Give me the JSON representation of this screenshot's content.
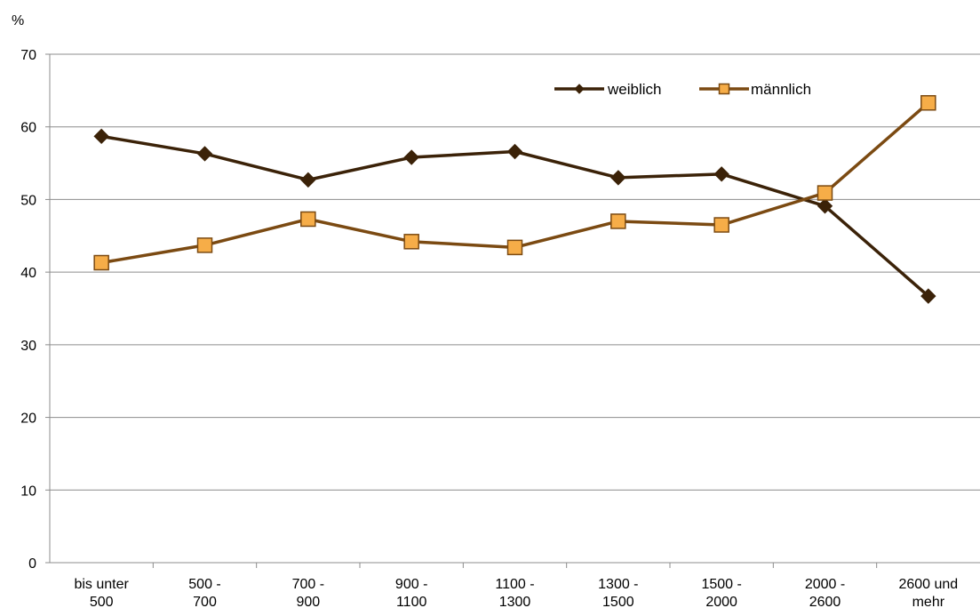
{
  "chart_data": {
    "type": "line",
    "ylabel": "%",
    "ylim": [
      0,
      70
    ],
    "yticks": [
      0,
      10,
      20,
      30,
      40,
      50,
      60,
      70
    ],
    "grid": true,
    "legend_position": "top-right",
    "categories": [
      [
        "bis unter",
        "500"
      ],
      [
        "500 -",
        "700"
      ],
      [
        "700 -",
        "900"
      ],
      [
        "900 -",
        "1100"
      ],
      [
        "1100 -",
        "1300"
      ],
      [
        "1300 -",
        "1500"
      ],
      [
        "1500 -",
        "2000"
      ],
      [
        "2000 -",
        "2600"
      ],
      [
        "2600 und",
        "mehr"
      ]
    ],
    "series": [
      {
        "name": "weiblich",
        "marker": "diamond",
        "color": "#3b2208",
        "marker_fill": "#3b2208",
        "values": [
          58.7,
          56.3,
          52.7,
          55.8,
          56.6,
          53.0,
          53.5,
          49.1,
          36.7
        ]
      },
      {
        "name": "männlich",
        "marker": "square",
        "color": "#7b4a12",
        "marker_fill": "#f6ad48",
        "values": [
          41.3,
          43.7,
          47.3,
          44.2,
          43.4,
          47.0,
          46.5,
          50.9,
          63.3
        ]
      }
    ]
  }
}
